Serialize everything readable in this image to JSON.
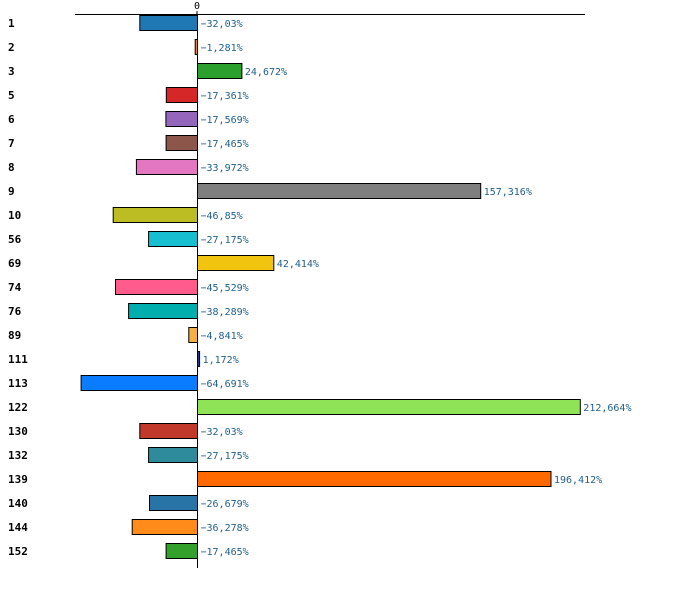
{
  "chart_data": {
    "type": "bar",
    "orientation": "horizontal",
    "title": "",
    "xlabel": "",
    "ylabel": "",
    "xlim": [
      -75,
      245
    ],
    "grid": false,
    "legend": "none",
    "zero_tick_label": "0",
    "value_suffix": "%",
    "categories": [
      "1",
      "2",
      "3",
      "5",
      "6",
      "7",
      "8",
      "9",
      "10",
      "56",
      "69",
      "74",
      "76",
      "89",
      "111",
      "113",
      "122",
      "130",
      "132",
      "139",
      "140",
      "144",
      "152"
    ],
    "values": [
      -32.03,
      -1.281,
      24.672,
      -17.361,
      -17.569,
      -17.465,
      -33.972,
      157.316,
      -46.85,
      -27.175,
      42.414,
      -45.529,
      -38.289,
      -4.841,
      1.172,
      -64.691,
      212.664,
      -32.03,
      -27.175,
      196.412,
      -26.679,
      -36.278,
      -17.465
    ],
    "value_labels": [
      "−32,03%",
      "−1,281%",
      "24,672%",
      "−17,361%",
      "−17,569%",
      "−17,465%",
      "−33,972%",
      "157,316%",
      "−46,85%",
      "−27,175%",
      "42,414%",
      "−45,529%",
      "−38,289%",
      "−4,841%",
      "1,172%",
      "−64,691%",
      "212,664%",
      "−32,03%",
      "−27,175%",
      "196,412%",
      "−26,679%",
      "−36,278%",
      "−17,465%"
    ],
    "colors": [
      "#1f77b4",
      "#ff7f0e",
      "#2ca02c",
      "#d62728",
      "#9467bd",
      "#8c564b",
      "#e377c2",
      "#7f7f7f",
      "#bcbd22",
      "#17becf",
      "#f1c40f",
      "#ff5c8d",
      "#00aeae",
      "#f5b041",
      "#1f3b8b",
      "#0a7cff",
      "#8fe356",
      "#c0392b",
      "#2e8b9b",
      "#ff6a00",
      "#2874a6",
      "#ff8c1a",
      "#33a02c"
    ]
  }
}
